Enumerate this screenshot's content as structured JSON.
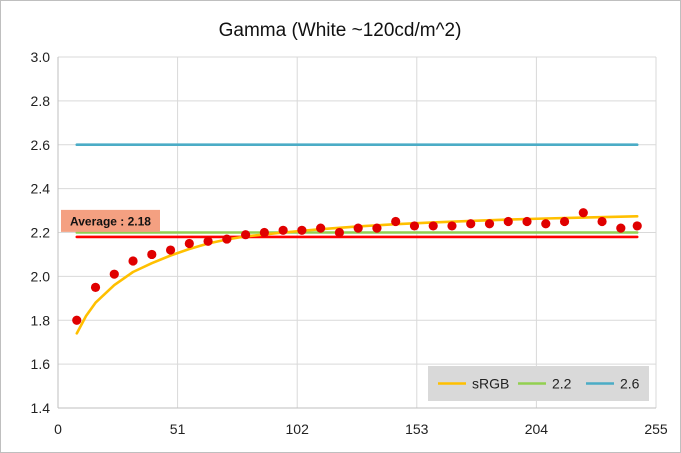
{
  "chart_data": {
    "type": "line",
    "title": "Gamma (White ~120cd/m^2)",
    "xlabel": "",
    "ylabel": "",
    "xlim": [
      0,
      255
    ],
    "ylim": [
      1.4,
      3.0
    ],
    "x_ticks": [
      "0",
      "51",
      "102",
      "153",
      "204",
      "255"
    ],
    "x_tick_values": [
      0,
      51,
      102,
      153,
      204,
      255
    ],
    "y_ticks": [
      "1.4",
      "1.6",
      "1.8",
      "2.0",
      "2.2",
      "2.4",
      "2.6",
      "2.8",
      "3.0"
    ],
    "y_tick_values": [
      1.4,
      1.6,
      1.8,
      2.0,
      2.2,
      2.4,
      2.6,
      2.8,
      3.0
    ],
    "grid": true,
    "legend_position": "bottom-right",
    "series": [
      {
        "name": "sRGB",
        "kind": "line",
        "color": "#FFC000",
        "x": [
          8,
          12,
          16,
          24,
          32,
          40,
          48,
          56,
          64,
          72,
          80,
          96,
          112,
          128,
          144,
          160,
          176,
          192,
          208,
          224,
          240,
          247
        ],
        "y": [
          1.74,
          1.82,
          1.88,
          1.96,
          2.02,
          2.06,
          2.095,
          2.125,
          2.15,
          2.168,
          2.182,
          2.2,
          2.215,
          2.228,
          2.238,
          2.246,
          2.253,
          2.259,
          2.264,
          2.268,
          2.272,
          2.274
        ]
      },
      {
        "name": "2.2",
        "kind": "line",
        "color": "#92D050",
        "x": [
          8,
          247
        ],
        "y": [
          2.2,
          2.2
        ]
      },
      {
        "name": "2.6",
        "kind": "line",
        "color": "#4BACC6",
        "x": [
          8,
          247
        ],
        "y": [
          2.6,
          2.6
        ]
      },
      {
        "name": "",
        "kind": "line",
        "color": "#FF0000",
        "x": [
          8,
          247
        ],
        "y": [
          2.18,
          2.18
        ]
      },
      {
        "name": "",
        "kind": "scatter",
        "color": "#E00000",
        "x": [
          8,
          16,
          24,
          32,
          40,
          48,
          56,
          64,
          72,
          80,
          88,
          96,
          104,
          112,
          120,
          128,
          136,
          144,
          152,
          160,
          168,
          176,
          184,
          192,
          200,
          208,
          216,
          224,
          232,
          240,
          247
        ],
        "y": [
          1.8,
          1.95,
          2.01,
          2.07,
          2.1,
          2.12,
          2.15,
          2.16,
          2.17,
          2.19,
          2.2,
          2.21,
          2.21,
          2.22,
          2.2,
          2.22,
          2.22,
          2.25,
          2.23,
          2.23,
          2.23,
          2.24,
          2.24,
          2.25,
          2.25,
          2.24,
          2.25,
          2.29,
          2.25,
          2.22,
          2.23
        ]
      }
    ],
    "annotation": {
      "text": "Average : 2.18",
      "value": 2.18,
      "background": "#F4A081"
    },
    "colors": {
      "grid": "#d9d9d9",
      "legend_bg": "#d9d9d9"
    }
  }
}
